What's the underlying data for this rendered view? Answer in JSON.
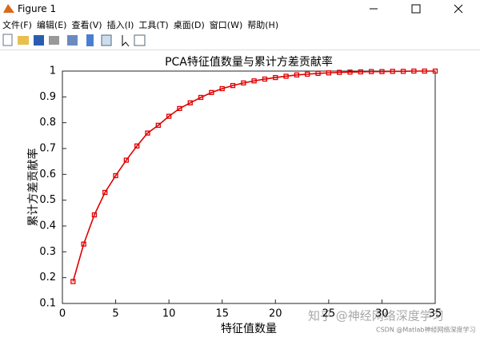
{
  "window": {
    "title": "Figure 1",
    "menu": [
      "文件(F)",
      "编辑(E)",
      "查看(V)",
      "插入(I)",
      "工具(T)",
      "桌面(D)",
      "窗口(W)",
      "帮助(H)"
    ],
    "watermarks": [
      "知乎 @神经网络深度学习",
      "CSDN @Matlab神经网络深度学习"
    ]
  },
  "chart_data": {
    "type": "line",
    "title": "PCA特征值数量与累计方差贡献率",
    "x_label": "特征值数量",
    "y_label": "累计方差贡献率",
    "x": [
      1,
      2,
      3,
      4,
      5,
      6,
      7,
      8,
      9,
      10,
      11,
      12,
      13,
      14,
      15,
      16,
      17,
      18,
      19,
      20,
      21,
      22,
      23,
      24,
      25,
      26,
      27,
      28,
      29,
      30,
      31,
      32,
      33,
      34,
      35
    ],
    "series": [
      {
        "name": "累计方差贡献率",
        "color": "#e00000",
        "values": [
          0.185,
          0.33,
          0.443,
          0.53,
          0.595,
          0.655,
          0.71,
          0.76,
          0.79,
          0.825,
          0.855,
          0.877,
          0.898,
          0.917,
          0.932,
          0.944,
          0.954,
          0.962,
          0.969,
          0.975,
          0.98,
          0.985,
          0.988,
          0.991,
          0.993,
          0.995,
          0.996,
          0.997,
          0.998,
          0.998,
          0.999,
          0.999,
          1,
          1,
          1
        ]
      }
    ],
    "xlim": [
      0,
      35
    ],
    "xticks": [
      0,
      5,
      10,
      15,
      20,
      25,
      30,
      35
    ],
    "ylim": [
      0.1,
      1
    ],
    "yticks": [
      0.1,
      0.2,
      0.3,
      0.4,
      0.5,
      0.6,
      0.7,
      0.8,
      0.9,
      1
    ]
  }
}
